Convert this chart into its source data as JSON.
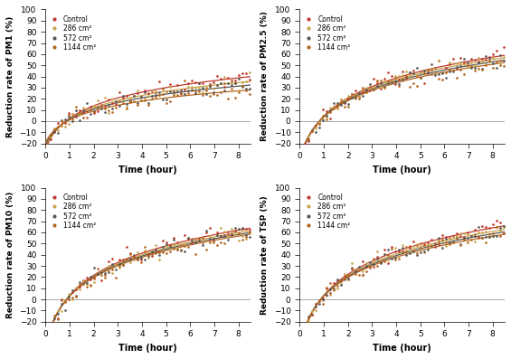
{
  "subplots": [
    {
      "ylabel": "Reduction rate of PM1 (%)",
      "fine_params": [
        {
          "a": 19.5,
          "b": -2.5,
          "c": 0.3
        },
        {
          "a": 17.5,
          "b": -2.5,
          "c": 0.3
        },
        {
          "a": 16.0,
          "b": -2.5,
          "c": 0.3
        },
        {
          "a": 14.0,
          "b": -2.5,
          "c": 0.3
        }
      ]
    },
    {
      "ylabel": "Reduction rate of PM2.5 (%)",
      "fine_params": [
        {
          "a": 28.5,
          "b": -3.0,
          "c": 0.3
        },
        {
          "a": 27.5,
          "b": -3.0,
          "c": 0.3
        },
        {
          "a": 26.5,
          "b": -3.0,
          "c": 0.3
        },
        {
          "a": 25.5,
          "b": -3.0,
          "c": 0.3
        }
      ]
    },
    {
      "ylabel": "Reduction rate of PM10 (%)",
      "fine_params": [
        {
          "a": 31.0,
          "b": -3.5,
          "c": 0.25
        },
        {
          "a": 30.0,
          "b": -3.5,
          "c": 0.25
        },
        {
          "a": 29.2,
          "b": -3.5,
          "c": 0.25
        },
        {
          "a": 28.5,
          "b": -3.5,
          "c": 0.25
        }
      ]
    },
    {
      "ylabel": "Reduction rate of TSP (%)",
      "fine_params": [
        {
          "a": 32.0,
          "b": -3.5,
          "c": 0.25
        },
        {
          "a": 30.5,
          "b": -3.5,
          "c": 0.25
        },
        {
          "a": 29.5,
          "b": -3.5,
          "c": 0.25
        },
        {
          "a": 28.5,
          "b": -3.5,
          "c": 0.25
        }
      ]
    }
  ],
  "ylim": [
    -20,
    100
  ],
  "yticks": [
    -20,
    -10,
    0,
    10,
    20,
    30,
    40,
    50,
    60,
    70,
    80,
    90,
    100
  ],
  "xlabel": "Time (hour)",
  "xlim": [
    0,
    8.5
  ],
  "xticks": [
    0,
    1,
    2,
    3,
    4,
    5,
    6,
    7,
    8
  ],
  "dot_noise_scale": 3.5,
  "dot_every": 0.15,
  "background_color": "#ffffff",
  "colors": [
    "#c0392b",
    "#c8a44a",
    "#555555",
    "#b5651d"
  ],
  "legend_labels": [
    "Control",
    "286 cm²",
    "572 cm²",
    "1144 cm²"
  ]
}
